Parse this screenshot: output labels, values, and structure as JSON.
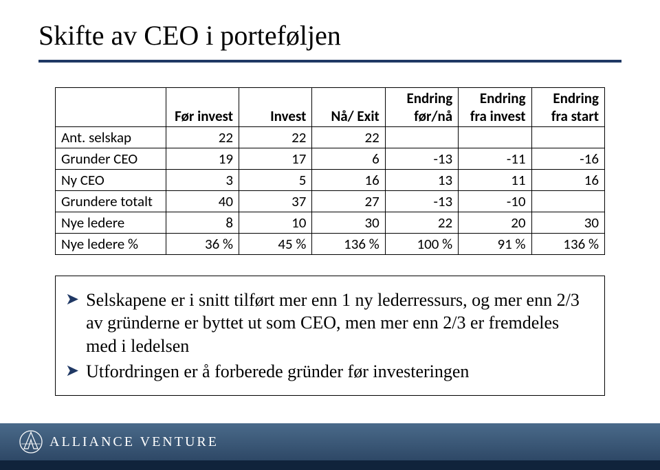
{
  "title": "Skifte av CEO i porteføljen",
  "table": {
    "headers": [
      "",
      "Før invest",
      "Invest",
      "Nå/ Exit",
      "Endring før/nå",
      "Endring fra invest",
      "Endring fra start"
    ],
    "rows": [
      {
        "label": "Ant. selskap",
        "cells": [
          "22",
          "22",
          "22",
          "",
          "",
          ""
        ]
      },
      {
        "label": "Grunder CEO",
        "cells": [
          "19",
          "17",
          "6",
          "-13",
          "-11",
          "-16"
        ]
      },
      {
        "label": "Ny CEO",
        "cells": [
          "3",
          "5",
          "16",
          "13",
          "11",
          "16"
        ]
      },
      {
        "label": "Grundere totalt",
        "cells": [
          "40",
          "37",
          "27",
          "-13",
          "-10",
          ""
        ]
      },
      {
        "label": "Nye ledere",
        "cells": [
          "8",
          "10",
          "30",
          "22",
          "20",
          "30"
        ]
      },
      {
        "label": "Nye ledere %",
        "cells": [
          "36 %",
          "45 %",
          "136 %",
          "100 %",
          "91 %",
          "136 %"
        ]
      }
    ]
  },
  "bullets": [
    "Selskapene er i snitt tilført mer enn 1 ny lederressurs, og mer enn 2/3 av gründerne er byttet ut som CEO, men mer enn 2/3 er fremdeles med i ledelsen",
    "Utfordringen er å forberede gründer før investeringen"
  ],
  "footer": {
    "brand": "ALLIANCE VENTURE"
  },
  "colors": {
    "accent": "#1f3864"
  }
}
